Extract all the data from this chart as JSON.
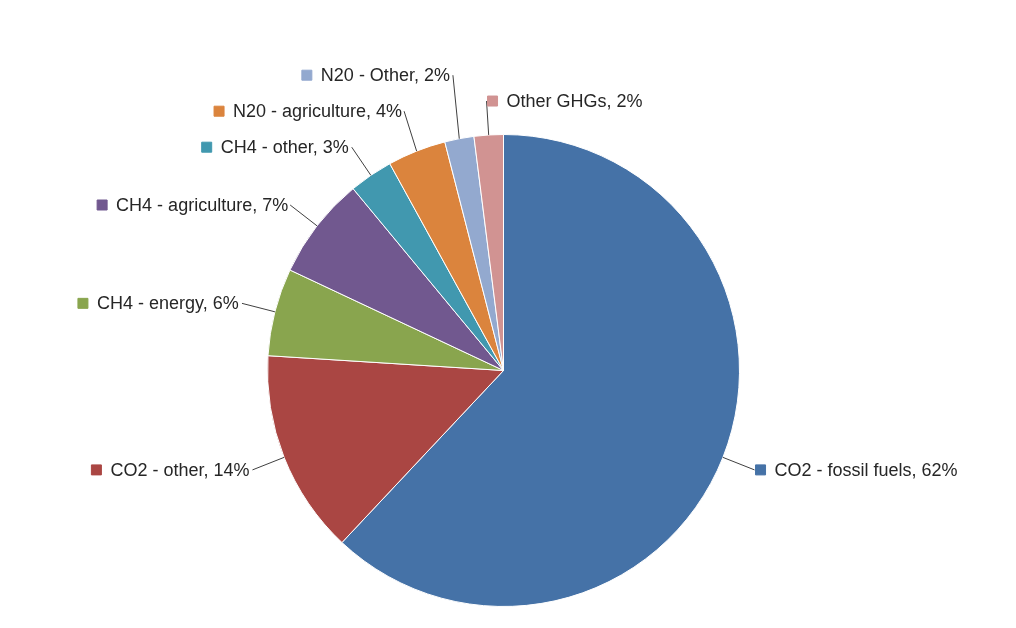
{
  "chart_data": {
    "type": "pie",
    "categories": [
      "CO2 - fossil fuels",
      "CO2 - other",
      "CH4 - energy",
      "CH4 - agriculture",
      "CH4 - other",
      "N20 - agriculture",
      "N20 - Other",
      "Other GHGs"
    ],
    "values": [
      62,
      14,
      6,
      7,
      3,
      4,
      2,
      2
    ],
    "value_labels": [
      "62%",
      "14%",
      "6%",
      "7%",
      "3%",
      "4%",
      "2%",
      "2%"
    ],
    "colors": [
      "#4572a7",
      "#aa4643",
      "#89a54e",
      "#71588f",
      "#4198af",
      "#db843d",
      "#93a9cf",
      "#d19392"
    ],
    "legend": "left"
  }
}
